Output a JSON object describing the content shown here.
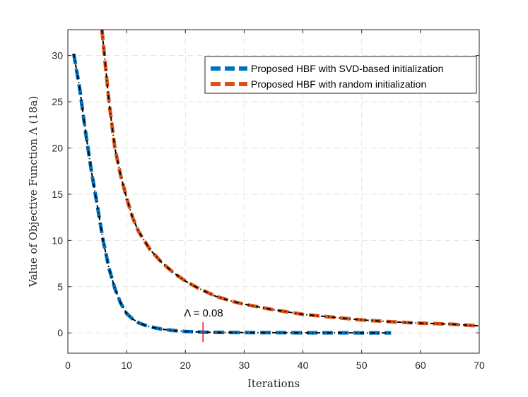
{
  "chart_data": {
    "type": "line",
    "xlabel": "Iterations",
    "ylabel": "Value of Objective Function Λ (18a)",
    "xlim": [
      0,
      70
    ],
    "ylim": [
      -2.2,
      32.8
    ],
    "xticks": [
      0,
      10,
      20,
      30,
      40,
      50,
      60,
      70
    ],
    "yticks": [
      0,
      5,
      10,
      15,
      20,
      25,
      30
    ],
    "grid": true,
    "legend_position": "top-right",
    "series": [
      {
        "name": "Proposed HBF with SVD-based initialization",
        "color": "#0072BD",
        "x": [
          1,
          2,
          3,
          4,
          5,
          6,
          7,
          8,
          9,
          10,
          11,
          12,
          13,
          14,
          16,
          18,
          20,
          23,
          26,
          30,
          35,
          40,
          45,
          50,
          55
        ],
        "values": [
          30.2,
          26.5,
          21.8,
          17.5,
          13.8,
          10.0,
          7.0,
          4.8,
          3.2,
          2.1,
          1.5,
          1.1,
          0.85,
          0.65,
          0.4,
          0.25,
          0.15,
          0.08,
          0.05,
          0.03,
          0.02,
          0.01,
          0.01,
          0.0,
          0.0
        ]
      },
      {
        "name": "Proposed HBF with random initialization",
        "color": "#D95319",
        "x": [
          5.8,
          6.2,
          7,
          8,
          9,
          10,
          11,
          12,
          13,
          14,
          15,
          16,
          18,
          20,
          22,
          25,
          28,
          30,
          35,
          40,
          45,
          50,
          55,
          60,
          65,
          70
        ],
        "values": [
          32.8,
          30.2,
          25.0,
          20.0,
          17.0,
          14.6,
          12.5,
          11.0,
          10.0,
          9.0,
          8.3,
          7.6,
          6.5,
          5.6,
          4.9,
          4.0,
          3.4,
          3.1,
          2.5,
          2.0,
          1.7,
          1.4,
          1.2,
          1.05,
          0.95,
          0.75
        ]
      }
    ],
    "annotation": {
      "text": "Λ = 0.08",
      "x": 23,
      "y": 0.08,
      "marker_color": "#FF0000"
    }
  }
}
